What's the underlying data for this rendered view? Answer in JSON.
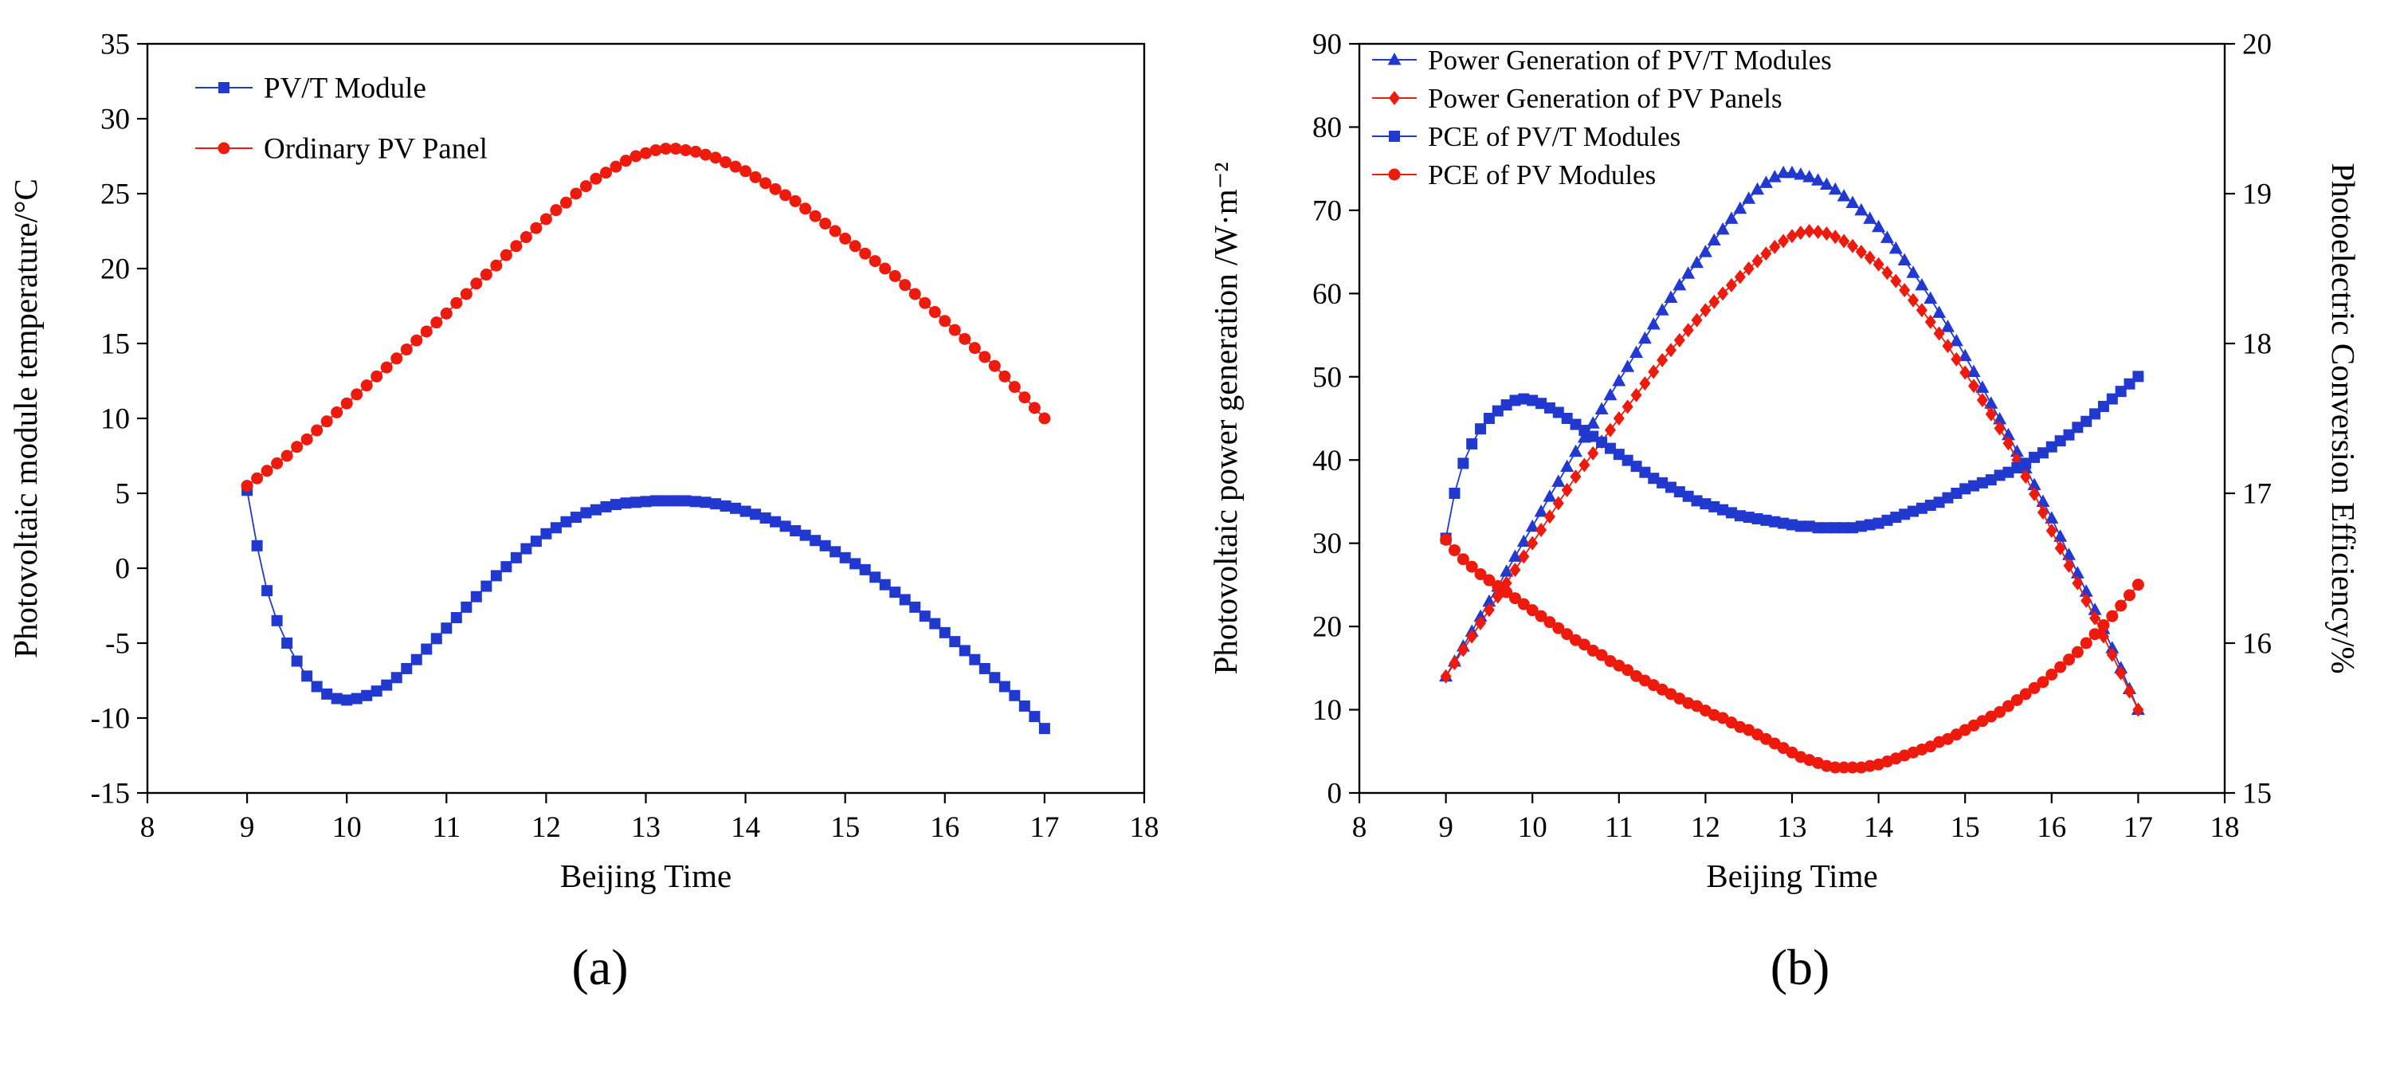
{
  "figure": {
    "caption_a": "(a)",
    "caption_b": "(b)"
  },
  "colors": {
    "series_blue": "#2139cf",
    "series_red": "#ed1a0d",
    "axis": "#000000"
  },
  "chart_data": [
    {
      "id": "chart-a",
      "type": "line",
      "title": "",
      "xlabel": "Beijing Time",
      "ylabel": "Photovoltaic module temperature/°C",
      "xlim": [
        8,
        18
      ],
      "ylim": [
        -15,
        35
      ],
      "xticks": [
        8,
        9,
        10,
        11,
        12,
        13,
        14,
        15,
        16,
        17,
        18
      ],
      "yticks": [
        -15,
        -10,
        -5,
        0,
        5,
        10,
        15,
        20,
        25,
        30,
        35
      ],
      "x_start": 9.0,
      "x_step": 0.1,
      "grid": false,
      "legend_position": "top-left",
      "series": [
        {
          "name": "PV/T Module",
          "marker": "square",
          "color": "#2139cf",
          "axis": "left",
          "values": [
            5.2,
            1.5,
            -1.5,
            -3.5,
            -5.0,
            -6.2,
            -7.2,
            -7.9,
            -8.4,
            -8.7,
            -8.8,
            -8.7,
            -8.5,
            -8.2,
            -7.8,
            -7.3,
            -6.7,
            -6.1,
            -5.4,
            -4.7,
            -4.0,
            -3.3,
            -2.6,
            -1.9,
            -1.2,
            -0.5,
            0.1,
            0.7,
            1.3,
            1.8,
            2.3,
            2.7,
            3.1,
            3.4,
            3.7,
            3.9,
            4.1,
            4.25,
            4.35,
            4.4,
            4.45,
            4.5,
            4.5,
            4.5,
            4.5,
            4.45,
            4.4,
            4.3,
            4.15,
            4.0,
            3.8,
            3.6,
            3.35,
            3.1,
            2.8,
            2.5,
            2.2,
            1.85,
            1.5,
            1.1,
            0.7,
            0.3,
            -0.1,
            -0.6,
            -1.1,
            -1.6,
            -2.1,
            -2.6,
            -3.2,
            -3.7,
            -4.3,
            -4.9,
            -5.5,
            -6.1,
            -6.7,
            -7.3,
            -7.9,
            -8.5,
            -9.2,
            -9.9,
            -10.7
          ]
        },
        {
          "name": "Ordinary PV Panel",
          "marker": "circle",
          "color": "#ed1a0d",
          "axis": "left",
          "values": [
            5.5,
            6.0,
            6.5,
            7.0,
            7.5,
            8.1,
            8.6,
            9.2,
            9.8,
            10.4,
            11.0,
            11.6,
            12.2,
            12.8,
            13.4,
            14.0,
            14.6,
            15.2,
            15.8,
            16.4,
            17.0,
            17.7,
            18.3,
            19.0,
            19.6,
            20.2,
            20.9,
            21.5,
            22.1,
            22.7,
            23.3,
            23.9,
            24.4,
            25.0,
            25.5,
            26.0,
            26.4,
            26.8,
            27.2,
            27.5,
            27.7,
            27.9,
            28.0,
            28.0,
            27.9,
            27.8,
            27.6,
            27.4,
            27.1,
            26.8,
            26.5,
            26.1,
            25.7,
            25.3,
            24.9,
            24.5,
            24.0,
            23.5,
            23.0,
            22.5,
            22.0,
            21.5,
            21.0,
            20.5,
            20.0,
            19.5,
            18.9,
            18.3,
            17.7,
            17.1,
            16.5,
            15.9,
            15.3,
            14.7,
            14.1,
            13.5,
            12.8,
            12.1,
            11.4,
            10.7,
            10.0
          ]
        }
      ]
    },
    {
      "id": "chart-b",
      "type": "line",
      "title": "",
      "xlabel": "Beijing Time",
      "ylabel_left": "Photovoltaic power generation /W·m⁻²",
      "ylabel_right": "Photoelectric Conversion Efficiency/%",
      "xlim": [
        8,
        18
      ],
      "ylim_left": [
        0,
        90
      ],
      "ylim_right": [
        15,
        20
      ],
      "xticks": [
        8,
        9,
        10,
        11,
        12,
        13,
        14,
        15,
        16,
        17,
        18
      ],
      "yticks_left": [
        0,
        10,
        20,
        30,
        40,
        50,
        60,
        70,
        80,
        90
      ],
      "yticks_right": [
        15,
        16,
        17,
        18,
        19,
        20
      ],
      "x_start": 9.0,
      "x_step": 0.1,
      "grid": false,
      "legend_position": "top-left",
      "series": [
        {
          "name": "Power Generation of PV/T Modules",
          "marker": "triangle",
          "color": "#2139cf",
          "axis": "left",
          "values": [
            14.0,
            15.8,
            17.6,
            19.4,
            21.2,
            23.0,
            24.8,
            26.6,
            28.4,
            30.2,
            32.0,
            33.8,
            35.6,
            37.4,
            39.2,
            41.0,
            42.7,
            44.4,
            46.1,
            47.8,
            49.5,
            51.2,
            52.9,
            54.6,
            56.3,
            58.0,
            59.5,
            61.0,
            62.4,
            63.7,
            65.0,
            66.4,
            67.7,
            69.0,
            70.2,
            71.4,
            72.5,
            73.3,
            74.0,
            74.5,
            74.5,
            74.3,
            74.0,
            73.6,
            73.1,
            72.5,
            71.7,
            70.9,
            70.0,
            69.0,
            68.0,
            66.7,
            65.4,
            64.0,
            62.5,
            61.0,
            59.4,
            57.7,
            56.0,
            54.3,
            52.5,
            50.6,
            48.7,
            46.8,
            44.9,
            43.0,
            41.0,
            39.0,
            37.0,
            35.0,
            33.0,
            30.8,
            28.6,
            26.4,
            24.2,
            22.0,
            19.7,
            17.4,
            15.0,
            12.5,
            10.0
          ]
        },
        {
          "name": "Power Generation of PV Panels",
          "marker": "diamond",
          "color": "#ed1a0d",
          "axis": "left",
          "values": [
            14.0,
            15.6,
            17.2,
            18.8,
            20.4,
            22.0,
            23.6,
            25.2,
            26.8,
            28.4,
            30.0,
            31.6,
            33.2,
            34.8,
            36.4,
            38.0,
            39.4,
            40.8,
            42.2,
            43.6,
            45.0,
            46.4,
            47.8,
            49.2,
            50.6,
            52.0,
            53.2,
            54.4,
            55.6,
            56.8,
            58.0,
            59.0,
            60.0,
            61.0,
            62.0,
            63.0,
            63.9,
            64.8,
            65.6,
            66.3,
            66.9,
            67.3,
            67.5,
            67.4,
            67.2,
            66.8,
            66.3,
            65.7,
            65.0,
            64.3,
            63.5,
            62.5,
            61.5,
            60.4,
            59.2,
            58.0,
            56.6,
            55.2,
            53.7,
            52.1,
            50.5,
            48.9,
            47.2,
            45.5,
            43.8,
            42.0,
            40.0,
            38.0,
            35.9,
            33.7,
            31.5,
            29.4,
            27.3,
            25.2,
            23.1,
            21.0,
            18.8,
            16.6,
            14.4,
            12.2,
            10.0
          ]
        },
        {
          "name": "PCE of PV/T Modules",
          "marker": "square",
          "color": "#2139cf",
          "axis": "right",
          "values": [
            16.7,
            17.0,
            17.2,
            17.33,
            17.43,
            17.5,
            17.55,
            17.59,
            17.62,
            17.63,
            17.62,
            17.6,
            17.57,
            17.54,
            17.5,
            17.46,
            17.42,
            17.38,
            17.34,
            17.3,
            17.26,
            17.22,
            17.18,
            17.14,
            17.1,
            17.07,
            17.04,
            17.01,
            16.98,
            16.95,
            16.93,
            16.91,
            16.89,
            16.87,
            16.85,
            16.84,
            16.83,
            16.82,
            16.81,
            16.8,
            16.79,
            16.78,
            16.78,
            16.77,
            16.77,
            16.77,
            16.77,
            16.77,
            16.78,
            16.79,
            16.8,
            16.82,
            16.84,
            16.86,
            16.88,
            16.9,
            16.92,
            16.94,
            16.97,
            17.0,
            17.03,
            17.05,
            17.07,
            17.09,
            17.12,
            17.14,
            17.17,
            17.2,
            17.24,
            17.27,
            17.31,
            17.35,
            17.39,
            17.44,
            17.48,
            17.53,
            17.58,
            17.63,
            17.68,
            17.73,
            17.78
          ]
        },
        {
          "name": "PCE of PV Modules",
          "marker": "circle",
          "color": "#ed1a0d",
          "axis": "right",
          "values": [
            16.69,
            16.62,
            16.56,
            16.51,
            16.46,
            16.42,
            16.38,
            16.34,
            16.3,
            16.26,
            16.22,
            16.18,
            16.14,
            16.1,
            16.06,
            16.02,
            15.99,
            15.95,
            15.92,
            15.88,
            15.85,
            15.82,
            15.78,
            15.75,
            15.72,
            15.69,
            15.66,
            15.63,
            15.6,
            15.58,
            15.55,
            15.52,
            15.5,
            15.47,
            15.44,
            15.42,
            15.39,
            15.36,
            15.33,
            15.3,
            15.27,
            15.24,
            15.22,
            15.2,
            15.18,
            15.17,
            15.17,
            15.17,
            15.17,
            15.18,
            15.19,
            15.21,
            15.23,
            15.25,
            15.27,
            15.29,
            15.31,
            15.34,
            15.36,
            15.39,
            15.42,
            15.45,
            15.48,
            15.51,
            15.54,
            15.58,
            15.62,
            15.66,
            15.7,
            15.74,
            15.79,
            15.84,
            15.89,
            15.94,
            16.0,
            16.06,
            16.12,
            16.18,
            16.25,
            16.32,
            16.39
          ]
        }
      ]
    }
  ]
}
